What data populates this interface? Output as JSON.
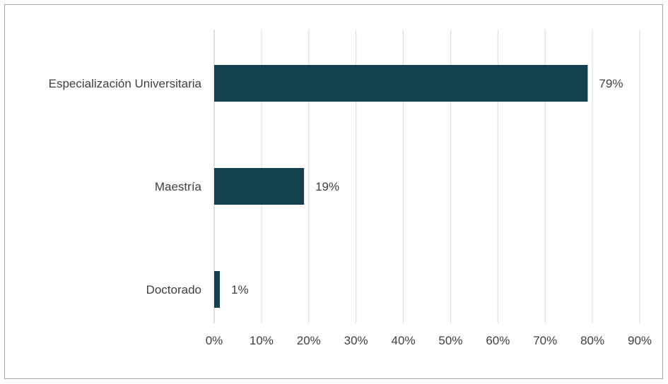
{
  "chart_data": {
    "type": "bar",
    "orientation": "horizontal",
    "categories": [
      "Especialización Universitaria",
      "Maestría",
      "Doctorado"
    ],
    "values": [
      79,
      19,
      1
    ],
    "data_labels": [
      "79%",
      "19%",
      "1%"
    ],
    "xlim": [
      0,
      90
    ],
    "x_ticks": [
      "0%",
      "10%",
      "20%",
      "30%",
      "40%",
      "50%",
      "60%",
      "70%",
      "80%",
      "90%"
    ],
    "grid": "vertical",
    "legend": "none",
    "bar_color": "#12424d",
    "grid_color": "#d9d9d9",
    "title": "",
    "xlabel": "",
    "ylabel": ""
  }
}
